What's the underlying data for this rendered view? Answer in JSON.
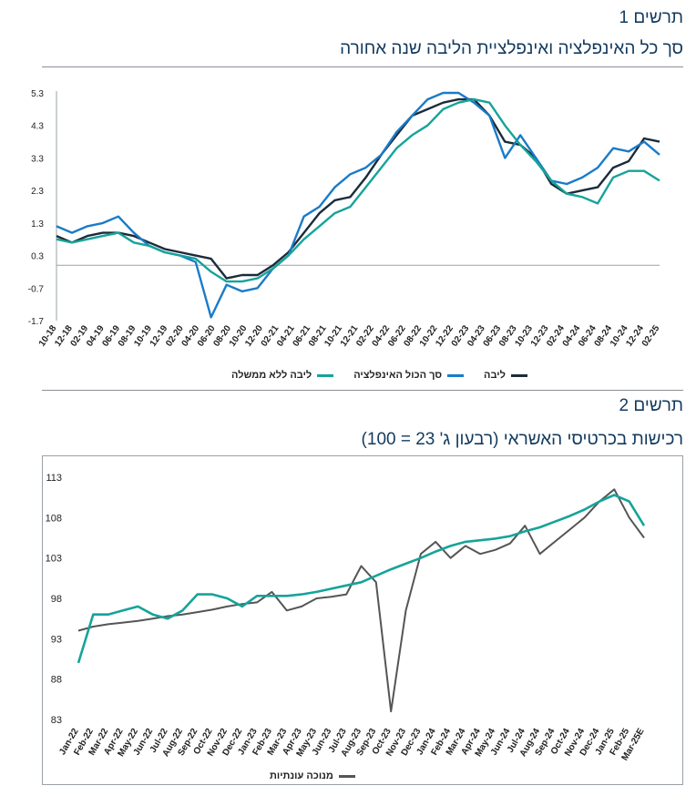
{
  "chart1": {
    "label": "תרשים 1",
    "title": "סך כל האינפלציה ואינפלציית הליבה שנה אחורה",
    "legend": [
      {
        "name": "ליבה",
        "color": "#1c2b3a"
      },
      {
        "name": "סך הכול האינפלציה",
        "color": "#1a7bc8"
      },
      {
        "name": "ליבה ללא ממשלה",
        "color": "#16a39a"
      }
    ]
  },
  "chart2": {
    "label": "תרשים 2",
    "title": "רכישות בכרטיסי האשראי (רבעון ג' 23 = 100)",
    "legend": [
      {
        "name": "מנוכה עונתיות",
        "color": "#555555"
      }
    ]
  },
  "chart_data": [
    {
      "type": "line",
      "title": "סך כל האינפלציה ואינפלציית הליבה שנה אחורה",
      "x_tick_labels": [
        "10-18",
        "12-18",
        "02-19",
        "04-19",
        "06-19",
        "08-19",
        "10-19",
        "12-19",
        "02-20",
        "04-20",
        "06-20",
        "08-20",
        "10-20",
        "12-20",
        "02-21",
        "04-21",
        "06-21",
        "08-21",
        "10-21",
        "12-21",
        "02-22",
        "04-22",
        "06-22",
        "08-22",
        "10-22",
        "12-22",
        "02-23",
        "04-23",
        "06-23",
        "08-23",
        "10-23",
        "12-23",
        "02-24",
        "04-24",
        "06-24",
        "08-24",
        "10-24",
        "12-24",
        "02-25"
      ],
      "ylim": [
        -1.7,
        5.3
      ],
      "y_ticks": [
        5.3,
        4.3,
        3.3,
        2.3,
        1.3,
        0.3,
        -0.7,
        -1.7
      ],
      "grid": false,
      "legend_position": "bottom",
      "series": [
        {
          "name": "ליבה",
          "color": "#1c2b3a",
          "values": [
            0.9,
            0.7,
            0.9,
            1.0,
            1.0,
            0.9,
            0.7,
            0.5,
            0.4,
            0.3,
            0.2,
            -0.4,
            -0.3,
            -0.3,
            0.0,
            0.4,
            1.0,
            1.6,
            2.0,
            2.1,
            2.7,
            3.4,
            4.0,
            4.6,
            4.8,
            5.0,
            5.1,
            5.1,
            4.6,
            3.8,
            3.7,
            3.3,
            2.5,
            2.2,
            2.3,
            2.4,
            3.0,
            3.2,
            3.9,
            3.8
          ]
        },
        {
          "name": "סך הכול האינפלציה",
          "color": "#1a7bc8",
          "values": [
            1.2,
            1.0,
            1.2,
            1.3,
            1.5,
            1.0,
            0.6,
            0.4,
            0.3,
            0.1,
            -1.6,
            -0.6,
            -0.8,
            -0.7,
            -0.1,
            0.3,
            1.5,
            1.8,
            2.4,
            2.8,
            3.0,
            3.4,
            4.1,
            4.6,
            5.1,
            5.3,
            5.3,
            5.0,
            4.6,
            3.3,
            4.0,
            3.3,
            2.6,
            2.5,
            2.7,
            3.0,
            3.6,
            3.5,
            3.8,
            3.4
          ]
        },
        {
          "name": "ליבה ללא ממשלה",
          "color": "#16a39a",
          "values": [
            0.8,
            0.7,
            0.8,
            0.9,
            1.0,
            0.7,
            0.6,
            0.4,
            0.3,
            0.2,
            -0.2,
            -0.5,
            -0.5,
            -0.4,
            -0.1,
            0.3,
            0.8,
            1.2,
            1.6,
            1.8,
            2.4,
            3.0,
            3.6,
            4.0,
            4.3,
            4.8,
            5.0,
            5.1,
            5.0,
            4.3,
            3.7,
            3.2,
            2.6,
            2.2,
            2.1,
            1.9,
            2.7,
            2.9,
            2.9,
            2.6
          ]
        }
      ]
    },
    {
      "type": "line",
      "title": "רכישות בכרטיסי האשראי (רבעון ג' 23 = 100)",
      "categories": [
        "Jan-22",
        "Feb-22",
        "Mar-22",
        "Apr-22",
        "May-22",
        "Jun-22",
        "Jul-22",
        "Aug-22",
        "Sep-22",
        "Oct-22",
        "Nov-22",
        "Dec-22",
        "Jan-23",
        "Feb-23",
        "Mar-23",
        "Apr-23",
        "May-23",
        "Jun-23",
        "Jul-23",
        "Aug-23",
        "Sep-23",
        "Oct-23",
        "Nov-23",
        "Dec-23",
        "Jan-24",
        "Feb-24",
        "Mar-24",
        "Apr-24",
        "May-24",
        "Jun-24",
        "Jul-24",
        "Aug-24",
        "Sep-24",
        "Oct-24",
        "Nov-24",
        "Dec-24",
        "Jan-25",
        "Feb-25",
        "Mar-25E"
      ],
      "ylim": [
        83,
        113
      ],
      "y_ticks": [
        113,
        108,
        103,
        98,
        93,
        88,
        83
      ],
      "grid": false,
      "legend_position": "bottom",
      "series": [
        {
          "name": "",
          "color": "#16a39a",
          "values": [
            90.0,
            96.0,
            96.0,
            96.5,
            97.0,
            96.0,
            95.5,
            96.5,
            98.5,
            98.5,
            98.0,
            97.0,
            98.3,
            98.3,
            98.3,
            98.5,
            98.8,
            99.2,
            99.6,
            100.0,
            100.8,
            101.6,
            102.3,
            103.0,
            103.8,
            104.5,
            105.0,
            105.2,
            105.4,
            105.7,
            106.3,
            106.8,
            107.5,
            108.2,
            109.0,
            110.0,
            110.8,
            110.0,
            107.0
          ]
        },
        {
          "name": "מנוכה עונתיות",
          "color": "#555555",
          "values": [
            94.0,
            94.5,
            94.8,
            95.0,
            95.2,
            95.5,
            95.8,
            96.0,
            96.3,
            96.6,
            97.0,
            97.3,
            97.5,
            98.8,
            96.5,
            97.0,
            98.0,
            98.2,
            98.5,
            102.0,
            100.0,
            84.0,
            96.5,
            103.5,
            105.0,
            103.0,
            104.5,
            103.5,
            104.0,
            104.8,
            107.0,
            103.5,
            105.0,
            106.5,
            108.0,
            110.0,
            111.5,
            108.0,
            105.5
          ]
        }
      ]
    }
  ]
}
